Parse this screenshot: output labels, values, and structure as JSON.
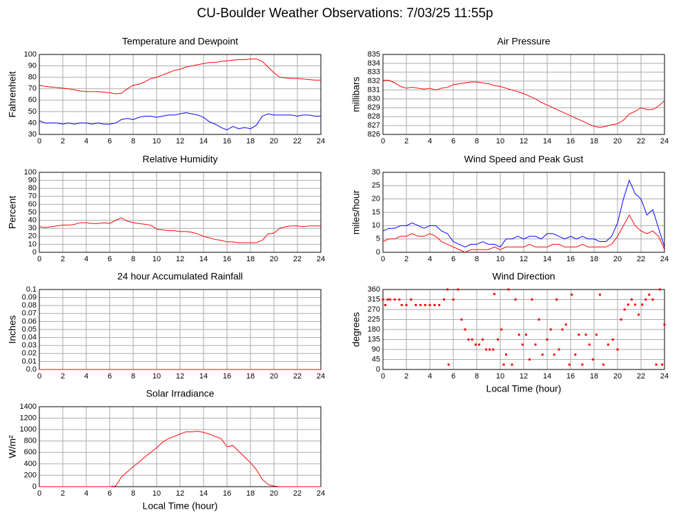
{
  "title": "CU-Boulder Weather Observations: 7/03/25 11:55p",
  "chart_data": [
    {
      "type": "line",
      "title": "Temperature and Dewpoint",
      "ylabel": "Fahrenheit",
      "grid": true,
      "xlim": [
        0,
        24
      ],
      "xticks": [
        0,
        2,
        4,
        6,
        8,
        10,
        12,
        14,
        16,
        18,
        20,
        22,
        24
      ],
      "ylim": [
        30,
        100
      ],
      "yticks": [
        30,
        40,
        50,
        60,
        70,
        80,
        90,
        100
      ],
      "x": [
        0,
        0.5,
        1,
        1.5,
        2,
        2.5,
        3,
        3.5,
        4,
        4.5,
        5,
        5.5,
        6,
        6.5,
        7,
        7.5,
        8,
        8.5,
        9,
        9.5,
        10,
        10.5,
        11,
        11.5,
        12,
        12.5,
        13,
        13.5,
        14,
        14.5,
        15,
        15.5,
        16,
        16.5,
        17,
        17.5,
        18,
        18.5,
        19,
        19.5,
        20,
        20.5,
        21,
        21.5,
        22,
        22.5,
        23,
        23.5,
        24
      ],
      "series": [
        {
          "name": "Temperature",
          "color": "#ff0000",
          "values": [
            73,
            72,
            71.5,
            71,
            70.5,
            70,
            69,
            68,
            67.5,
            67.5,
            67.5,
            67,
            66.5,
            65.5,
            66,
            70,
            73,
            74,
            76,
            79,
            80,
            82,
            84,
            86,
            87,
            89,
            90,
            91,
            92,
            93,
            93,
            94,
            94.5,
            95,
            95.5,
            95.5,
            96,
            96,
            94,
            89,
            84,
            80,
            79.5,
            79,
            79,
            78.5,
            78,
            77.5,
            77.5
          ]
        },
        {
          "name": "Dewpoint",
          "color": "#0000ff",
          "values": [
            42,
            40,
            40,
            40,
            39,
            40,
            39,
            40,
            40,
            39,
            40,
            39,
            39,
            40,
            43,
            44,
            43,
            45,
            46,
            46,
            45,
            46,
            47,
            47,
            48,
            49,
            48,
            47,
            45,
            41,
            39,
            36,
            34,
            37,
            35,
            36,
            35,
            38,
            46,
            48,
            47,
            47,
            47,
            47,
            46,
            47,
            47,
            46,
            46
          ]
        }
      ]
    },
    {
      "type": "line",
      "title": "Air Pressure",
      "ylabel": "millibars",
      "grid": true,
      "xlim": [
        0,
        24
      ],
      "xticks": [
        0,
        2,
        4,
        6,
        8,
        10,
        12,
        14,
        16,
        18,
        20,
        22,
        24
      ],
      "ylim": [
        826,
        835
      ],
      "yticks": [
        826,
        827,
        828,
        829,
        830,
        831,
        832,
        833,
        834,
        835
      ],
      "x": [
        0,
        0.5,
        1,
        1.5,
        2,
        2.5,
        3,
        3.5,
        4,
        4.5,
        5,
        5.5,
        6,
        6.5,
        7,
        7.5,
        8,
        8.5,
        9,
        9.5,
        10,
        10.5,
        11,
        11.5,
        12,
        12.5,
        13,
        13.5,
        14,
        14.5,
        15,
        15.5,
        16,
        16.5,
        17,
        17.5,
        18,
        18.5,
        19,
        19.5,
        20,
        20.5,
        21,
        21.5,
        22,
        22.5,
        23,
        23.5,
        24
      ],
      "series": [
        {
          "name": "Pressure",
          "color": "#ff0000",
          "values": [
            832.1,
            832.1,
            831.8,
            831.4,
            831.2,
            831.3,
            831.2,
            831.1,
            831.2,
            831.0,
            831.2,
            831.3,
            831.6,
            831.7,
            831.8,
            831.9,
            831.9,
            831.8,
            831.7,
            831.5,
            831.4,
            831.2,
            831.0,
            830.8,
            830.6,
            830.3,
            830.0,
            829.6,
            829.3,
            829.0,
            828.7,
            828.4,
            828.1,
            827.8,
            827.5,
            827.2,
            826.9,
            826.8,
            826.9,
            827.1,
            827.2,
            827.6,
            828.3,
            828.6,
            829.0,
            828.8,
            828.8,
            829.2,
            829.8
          ]
        }
      ]
    },
    {
      "type": "line",
      "title": "Relative Humidity",
      "ylabel": "Percent",
      "grid": true,
      "xlim": [
        0,
        24
      ],
      "xticks": [
        0,
        2,
        4,
        6,
        8,
        10,
        12,
        14,
        16,
        18,
        20,
        22,
        24
      ],
      "ylim": [
        0,
        100
      ],
      "yticks": [
        0,
        10,
        20,
        30,
        40,
        50,
        60,
        70,
        80,
        90,
        100
      ],
      "x": [
        0,
        0.5,
        1,
        1.5,
        2,
        2.5,
        3,
        3.5,
        4,
        4.5,
        5,
        5.5,
        6,
        6.5,
        7,
        7.5,
        8,
        8.5,
        9,
        9.5,
        10,
        10.5,
        11,
        11.5,
        12,
        12.5,
        13,
        13.5,
        14,
        14.5,
        15,
        15.5,
        16,
        16.5,
        17,
        17.5,
        18,
        18.5,
        19,
        19.5,
        20,
        20.5,
        21,
        21.5,
        22,
        22.5,
        23,
        23.5,
        24
      ],
      "series": [
        {
          "name": "Humidity",
          "color": "#ff0000",
          "values": [
            32,
            31,
            32,
            33,
            34,
            34,
            35,
            37,
            37,
            36,
            36,
            37,
            36,
            40,
            43,
            39,
            37,
            36,
            35,
            34,
            29,
            28,
            27,
            27,
            26,
            26,
            25,
            23,
            20,
            18,
            16,
            15,
            13,
            13,
            12,
            12,
            12,
            12,
            15,
            23,
            24,
            30,
            32,
            33,
            33,
            32,
            33,
            33,
            33
          ]
        }
      ]
    },
    {
      "type": "line",
      "title": "Wind Speed and Peak Gust",
      "ylabel": "miles/hour",
      "grid": true,
      "xlim": [
        0,
        24
      ],
      "xticks": [
        0,
        2,
        4,
        6,
        8,
        10,
        12,
        14,
        16,
        18,
        20,
        22,
        24
      ],
      "ylim": [
        0,
        30
      ],
      "yticks": [
        0,
        5,
        10,
        15,
        20,
        25,
        30
      ],
      "x": [
        0,
        0.5,
        1,
        1.5,
        2,
        2.5,
        3,
        3.5,
        4,
        4.5,
        5,
        5.5,
        6,
        6.5,
        7,
        7.5,
        8,
        8.5,
        9,
        9.5,
        10,
        10.5,
        11,
        11.5,
        12,
        12.5,
        13,
        13.5,
        14,
        14.5,
        15,
        15.5,
        16,
        16.5,
        17,
        17.5,
        18,
        18.5,
        19,
        19.5,
        20,
        20.5,
        21,
        21.5,
        22,
        22.5,
        23,
        23.5,
        24
      ],
      "series": [
        {
          "name": "Peak Gust",
          "color": "#0000ff",
          "values": [
            8,
            9,
            9,
            10,
            10,
            11,
            10,
            9,
            10,
            10,
            8,
            7,
            4,
            3,
            2,
            3,
            3,
            4,
            3,
            3,
            2,
            5,
            5,
            6,
            5,
            6,
            6,
            5,
            7,
            7,
            6,
            5,
            6,
            5,
            6,
            5,
            5,
            4,
            4,
            6,
            11,
            20,
            27,
            22,
            20,
            14,
            16,
            9,
            2
          ]
        },
        {
          "name": "Wind Speed",
          "color": "#ff0000",
          "values": [
            4,
            5,
            5,
            6,
            6,
            7,
            6,
            6,
            7,
            6,
            4,
            3,
            2,
            1,
            0,
            1,
            1,
            1,
            1,
            2,
            1,
            2,
            2,
            2,
            2,
            3,
            2,
            2,
            2,
            3,
            3,
            2,
            2,
            2,
            3,
            2,
            2,
            2,
            2,
            3,
            6,
            10,
            14,
            10,
            8,
            7,
            8,
            6,
            1
          ]
        }
      ]
    },
    {
      "type": "line",
      "title": "24 hour Accumulated Rainfall",
      "ylabel": "Inches",
      "grid": true,
      "xlim": [
        0,
        24
      ],
      "xticks": [
        0,
        2,
        4,
        6,
        8,
        10,
        12,
        14,
        16,
        18,
        20,
        22,
        24
      ],
      "ylim": [
        0,
        0.1
      ],
      "yticks": [
        {
          "value": 0,
          "label": "0.0"
        },
        0.01,
        0.02,
        0.03,
        0.04,
        0.05,
        0.06,
        0.07,
        0.08,
        0.09,
        0.1
      ],
      "x": [
        0,
        24
      ],
      "series": [
        {
          "name": "Rainfall",
          "color": "#ff0000",
          "values": [
            0,
            0
          ]
        }
      ]
    },
    {
      "type": "scatter",
      "title": "Wind Direction",
      "ylabel": "degrees",
      "xlabel": "Local Time (hour)",
      "grid": true,
      "xlim": [
        0,
        24
      ],
      "xticks": [
        0,
        2,
        4,
        6,
        8,
        10,
        12,
        14,
        16,
        18,
        20,
        22,
        24
      ],
      "ylim": [
        0,
        360
      ],
      "yticks": [
        0,
        45,
        90,
        135,
        180,
        225,
        270,
        315,
        360
      ],
      "x": [
        0.0,
        0.2,
        0.4,
        0.6,
        1.0,
        1.4,
        1.6,
        2.0,
        2.4,
        2.8,
        3.2,
        3.6,
        4.0,
        4.4,
        4.8,
        5.2,
        5.5,
        5.6,
        6.0,
        6.4,
        6.7,
        7.0,
        7.3,
        7.6,
        7.9,
        8.2,
        8.5,
        8.8,
        9.1,
        9.4,
        9.5,
        9.8,
        10.1,
        10.3,
        10.5,
        10.7,
        11.0,
        11.3,
        11.6,
        11.9,
        12.2,
        12.5,
        12.7,
        13.0,
        13.3,
        13.6,
        14.0,
        14.3,
        14.6,
        14.8,
        15.0,
        15.3,
        15.6,
        15.9,
        16.1,
        16.4,
        16.7,
        17.0,
        17.3,
        17.6,
        17.9,
        18.2,
        18.5,
        18.8,
        19.2,
        19.6,
        20.0,
        20.3,
        20.6,
        20.9,
        21.2,
        21.5,
        21.8,
        22.1,
        22.4,
        22.7,
        23.0,
        23.3,
        23.6,
        23.8,
        24.0
      ],
      "series": [
        {
          "name": "Direction",
          "color": "#ff0000",
          "values": [
            315,
            290,
            315,
            315,
            315,
            315,
            290,
            290,
            315,
            290,
            290,
            290,
            290,
            290,
            290,
            315,
            360,
            22,
            315,
            360,
            225,
            180,
            135,
            135,
            112,
            112,
            135,
            90,
            90,
            90,
            340,
            135,
            180,
            22,
            67,
            360,
            22,
            315,
            157,
            112,
            157,
            45,
            315,
            112,
            225,
            67,
            135,
            180,
            67,
            315,
            90,
            180,
            202,
            22,
            337,
            67,
            157,
            22,
            157,
            112,
            45,
            157,
            337,
            22,
            112,
            135,
            90,
            225,
            270,
            292,
            315,
            292,
            247,
            292,
            315,
            337,
            315,
            22,
            360,
            22,
            202
          ]
        }
      ]
    },
    {
      "type": "line",
      "title": "Solar Irradiance",
      "ylabel": "W/m²",
      "xlabel": "Local Time (hour)",
      "grid": true,
      "xlim": [
        0,
        24
      ],
      "xticks": [
        0,
        2,
        4,
        6,
        8,
        10,
        12,
        14,
        16,
        18,
        20,
        22,
        24
      ],
      "ylim": [
        0,
        1400
      ],
      "yticks": [
        0,
        200,
        400,
        600,
        800,
        1000,
        1200,
        1400
      ],
      "x": [
        0,
        0.5,
        1,
        1.5,
        2,
        2.5,
        3,
        3.5,
        4,
        4.5,
        5,
        5.5,
        6,
        6.5,
        7,
        7.5,
        8,
        8.5,
        9,
        9.5,
        10,
        10.5,
        11,
        11.5,
        12,
        12.5,
        13,
        13.5,
        14,
        14.5,
        15,
        15.5,
        16,
        16.5,
        17,
        17.5,
        18,
        18.5,
        19,
        19.5,
        20,
        20.5,
        21,
        21.5,
        22,
        22.5,
        23,
        23.5,
        24
      ],
      "series": [
        {
          "name": "Irradiance",
          "color": "#ff0000",
          "values": [
            0,
            0,
            0,
            0,
            0,
            0,
            0,
            0,
            0,
            0,
            0,
            0,
            0,
            10,
            170,
            260,
            350,
            430,
            520,
            600,
            680,
            780,
            840,
            880,
            920,
            960,
            960,
            970,
            950,
            920,
            880,
            840,
            700,
            720,
            620,
            520,
            420,
            300,
            130,
            40,
            10,
            0,
            0,
            0,
            0,
            0,
            0,
            0,
            0
          ]
        }
      ]
    }
  ]
}
